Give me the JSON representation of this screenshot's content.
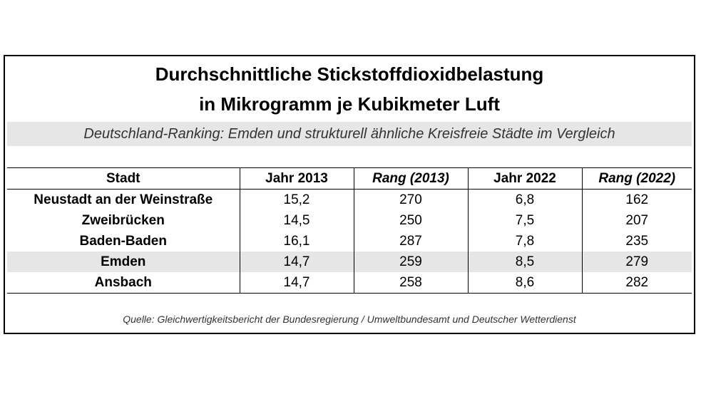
{
  "title_line1": "Durchschnittliche Stickstoffdioxidbelastung",
  "title_line2": "in Mikrogramm je Kubikmeter Luft",
  "subtitle": "Deutschland-Ranking: Emden und strukturell ähnliche Kreisfreie Städte im Vergleich",
  "table": {
    "headers": [
      "Stadt",
      "Jahr 2013",
      "Rang (2013)",
      "Jahr 2022",
      "Rang (2022)"
    ],
    "rows": [
      {
        "city": "Neustadt an der Weinstraße",
        "y2013": "15,2",
        "rank2013": "270",
        "y2022": "6,8",
        "rank2022": "162"
      },
      {
        "city": "Zweibrücken",
        "y2013": "14,5",
        "rank2013": "250",
        "y2022": "7,5",
        "rank2022": "207"
      },
      {
        "city": "Baden-Baden",
        "y2013": "16,1",
        "rank2013": "287",
        "y2022": "7,8",
        "rank2022": "235"
      },
      {
        "city": "Emden",
        "y2013": "14,7",
        "rank2013": "259",
        "y2022": "8,5",
        "rank2022": "279"
      },
      {
        "city": "Ansbach",
        "y2013": "14,7",
        "rank2013": "258",
        "y2022": "8,6",
        "rank2022": "282"
      }
    ],
    "highlight_color": "#e6e6e6"
  },
  "source": "Quelle: Gleichwertigkeitsbericht der Bundesregierung / Umweltbundesamt und Deutscher Wetterdienst"
}
